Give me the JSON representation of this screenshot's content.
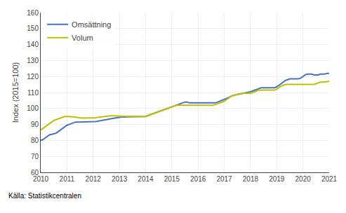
{
  "chart_data": {
    "type": "line",
    "ylabel": "Index (2015=100)",
    "annotations": [
      "Källa: Statistikcentralen"
    ],
    "xlim": [
      2010,
      2021
    ],
    "xticks": [
      2010,
      2011,
      2012,
      2013,
      2014,
      2015,
      2016,
      2017,
      2018,
      2019,
      2020,
      2021
    ],
    "ylim": [
      60,
      160
    ],
    "yticks": [
      60,
      70,
      80,
      90,
      100,
      110,
      120,
      130,
      140,
      150,
      160
    ],
    "grid": true,
    "legend": "upper left",
    "x": [
      2010.0,
      2010.083,
      2010.167,
      2010.25,
      2010.333,
      2010.417,
      2010.5,
      2010.583,
      2010.667,
      2010.75,
      2010.833,
      2010.917,
      2011.0,
      2011.083,
      2011.167,
      2011.25,
      2011.333,
      2011.417,
      2011.5,
      2011.583,
      2011.667,
      2011.75,
      2011.833,
      2011.917,
      2012.0,
      2012.083,
      2012.167,
      2012.25,
      2012.333,
      2012.417,
      2012.5,
      2012.583,
      2012.667,
      2012.75,
      2012.833,
      2012.917,
      2013.0,
      2013.083,
      2013.167,
      2013.25,
      2013.333,
      2013.417,
      2013.5,
      2013.583,
      2013.667,
      2013.75,
      2013.833,
      2013.917,
      2014.0,
      2014.083,
      2014.167,
      2014.25,
      2014.333,
      2014.417,
      2014.5,
      2014.583,
      2014.667,
      2014.75,
      2014.833,
      2014.917,
      2015.0,
      2015.083,
      2015.167,
      2015.25,
      2015.333,
      2015.417,
      2015.5,
      2015.583,
      2015.667,
      2015.75,
      2015.833,
      2015.917,
      2016.0,
      2016.083,
      2016.167,
      2016.25,
      2016.333,
      2016.417,
      2016.5,
      2016.583,
      2016.667,
      2016.75,
      2016.833,
      2016.917,
      2017.0,
      2017.083,
      2017.167,
      2017.25,
      2017.333,
      2017.417,
      2017.5,
      2017.583,
      2017.667,
      2017.75,
      2017.833,
      2017.917,
      2018.0,
      2018.083,
      2018.167,
      2018.25,
      2018.333,
      2018.417,
      2018.5,
      2018.583,
      2018.667,
      2018.75,
      2018.833,
      2018.917,
      2019.0,
      2019.083,
      2019.167,
      2019.25,
      2019.333,
      2019.417,
      2019.5,
      2019.583,
      2019.667,
      2019.75,
      2019.833,
      2019.917,
      2020.0,
      2020.083,
      2020.167,
      2020.25,
      2020.333,
      2020.417,
      2020.5,
      2020.583,
      2020.667,
      2020.75,
      2020.833,
      2020.917,
      2021.0
    ],
    "series": [
      {
        "name": "Omsättning",
        "color": "#4472C4",
        "values": [
          80.0,
          80.5,
          81.5,
          82.5,
          83.5,
          83.8,
          84.0,
          84.5,
          85.5,
          86.5,
          87.5,
          88.5,
          89.5,
          90.0,
          90.5,
          91.0,
          91.5,
          91.5,
          91.5,
          91.5,
          91.5,
          91.5,
          91.5,
          91.5,
          91.5,
          91.8,
          92.0,
          92.3,
          92.5,
          92.8,
          93.0,
          93.3,
          93.5,
          93.8,
          94.0,
          94.3,
          94.5,
          94.6,
          94.7,
          94.8,
          94.8,
          94.9,
          94.9,
          94.9,
          94.9,
          94.9,
          95.0,
          95.0,
          95.0,
          95.5,
          96.0,
          96.5,
          97.0,
          97.5,
          98.0,
          98.5,
          99.0,
          99.5,
          100.0,
          100.5,
          101.0,
          101.5,
          102.0,
          102.5,
          103.0,
          103.5,
          104.0,
          104.0,
          103.5,
          103.5,
          103.5,
          103.5,
          103.5,
          103.5,
          103.5,
          103.5,
          103.5,
          103.5,
          103.5,
          103.5,
          103.5,
          104.0,
          104.5,
          105.0,
          105.5,
          106.0,
          106.8,
          107.5,
          108.2,
          108.5,
          108.8,
          109.0,
          109.3,
          109.5,
          109.8,
          110.0,
          110.5,
          111.0,
          111.5,
          112.0,
          112.5,
          113.0,
          113.0,
          113.0,
          113.0,
          113.0,
          113.0,
          113.0,
          113.5,
          114.5,
          115.5,
          116.5,
          117.5,
          118.0,
          118.5,
          118.5,
          118.5,
          118.5,
          118.5,
          119.0,
          120.0,
          121.0,
          121.5,
          121.5,
          121.5,
          121.0,
          121.0,
          121.0,
          121.5,
          121.5,
          121.5,
          122.0,
          122.0
        ]
      },
      {
        "name": "Volum",
        "color": "#BFBF00",
        "values": [
          86.5,
          87.5,
          88.5,
          89.5,
          90.5,
          91.5,
          92.5,
          93.0,
          93.5,
          94.0,
          94.5,
          95.0,
          95.0,
          95.0,
          95.0,
          94.8,
          94.5,
          94.3,
          94.0,
          94.0,
          94.0,
          94.0,
          94.0,
          94.0,
          94.0,
          94.2,
          94.4,
          94.6,
          94.8,
          95.0,
          95.2,
          95.3,
          95.4,
          95.4,
          95.4,
          95.4,
          95.4,
          95.3,
          95.2,
          95.1,
          95.0,
          95.0,
          95.0,
          95.0,
          95.0,
          95.0,
          95.0,
          95.0,
          95.0,
          95.5,
          96.0,
          96.5,
          97.0,
          97.5,
          98.0,
          98.5,
          99.0,
          99.5,
          100.0,
          100.5,
          101.0,
          101.5,
          102.0,
          102.0,
          102.0,
          102.0,
          102.0,
          102.0,
          102.0,
          102.0,
          102.0,
          102.0,
          102.0,
          102.0,
          102.0,
          102.0,
          102.0,
          102.0,
          102.0,
          102.0,
          102.5,
          103.0,
          103.5,
          104.0,
          104.5,
          105.5,
          106.5,
          107.5,
          108.0,
          108.5,
          108.8,
          109.0,
          109.3,
          109.5,
          109.5,
          109.5,
          109.5,
          110.0,
          110.5,
          111.0,
          111.5,
          111.5,
          111.5,
          111.5,
          111.5,
          111.5,
          111.5,
          111.5,
          112.0,
          113.0,
          114.0,
          114.5,
          115.0,
          115.0,
          115.0,
          115.0,
          115.0,
          115.0,
          115.0,
          115.0,
          115.0,
          115.2,
          115.0,
          115.0,
          115.0,
          115.0,
          115.5,
          116.0,
          116.5,
          116.5,
          116.5,
          116.8,
          117.0
        ]
      }
    ]
  }
}
